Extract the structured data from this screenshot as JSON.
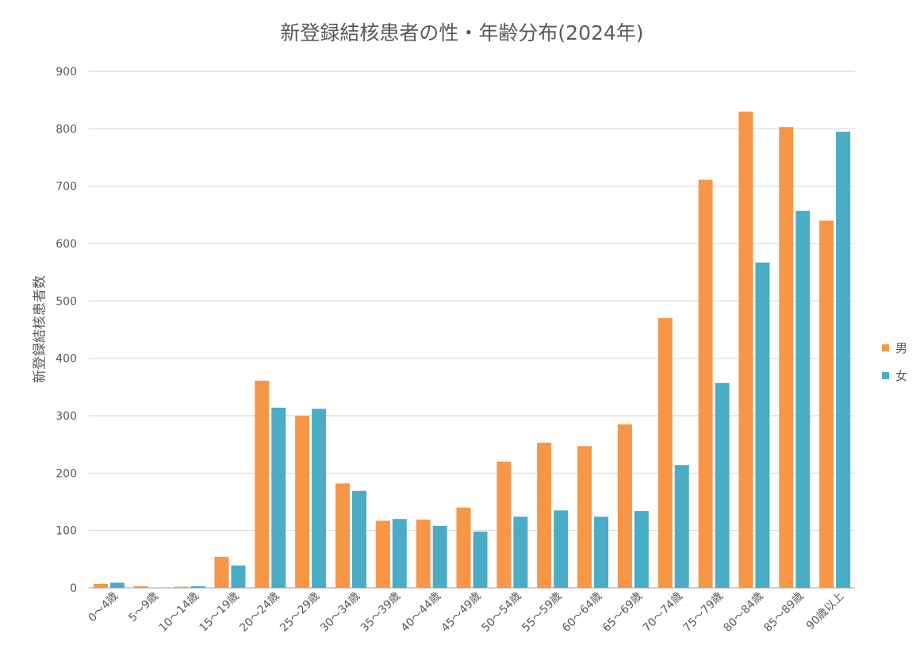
{
  "chart_data": {
    "type": "bar",
    "title": "新登録結核患者の性・年齢分布(2024年)",
    "xlabel": "",
    "ylabel": "新登録結核患者数",
    "ylim": [
      0,
      900
    ],
    "yticks": [
      0,
      100,
      200,
      300,
      400,
      500,
      600,
      700,
      800,
      900
    ],
    "grid": true,
    "legend_position": "right",
    "categories": [
      "0〜4歳",
      "5〜9歳",
      "10〜14歳",
      "15〜19歳",
      "20〜24歳",
      "25〜29歳",
      "30〜34歳",
      "35〜39歳",
      "40〜44歳",
      "45〜49歳",
      "50〜54歳",
      "55〜59歳",
      "60〜64歳",
      "65〜69歳",
      "70〜74歳",
      "75〜79歳",
      "80〜84歳",
      "85〜89歳",
      "90歳以上"
    ],
    "series": [
      {
        "name": "男",
        "color": "#F79646",
        "values": [
          7,
          3,
          2,
          54,
          361,
          300,
          182,
          117,
          119,
          140,
          220,
          253,
          247,
          285,
          470,
          711,
          830,
          803,
          640
        ]
      },
      {
        "name": "女",
        "color": "#4BACC6",
        "values": [
          9,
          0,
          3,
          39,
          314,
          312,
          169,
          120,
          108,
          98,
          124,
          135,
          124,
          134,
          214,
          357,
          567,
          657,
          795
        ]
      }
    ]
  }
}
